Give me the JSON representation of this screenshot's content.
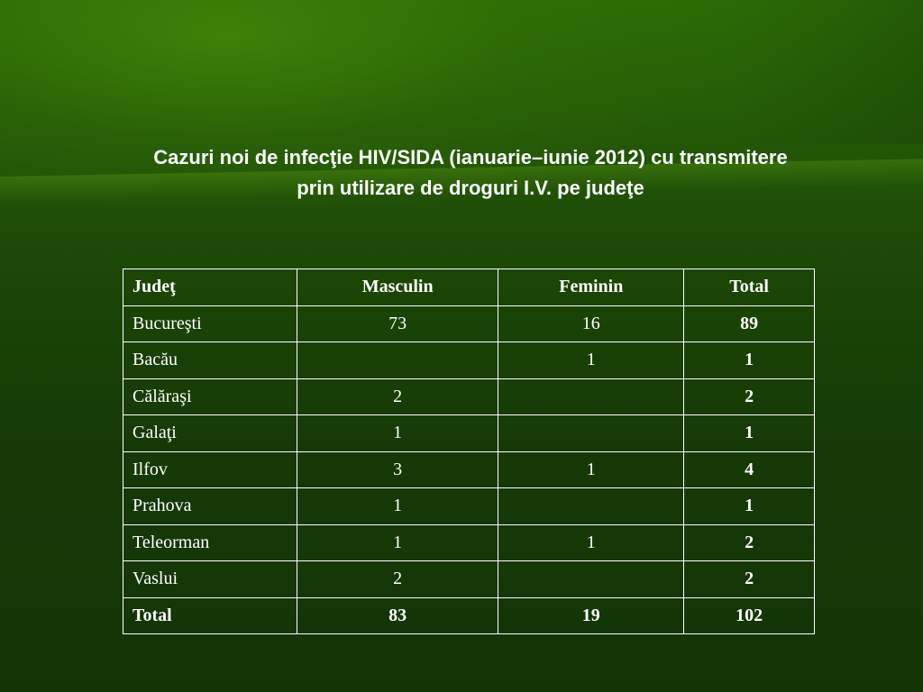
{
  "slide": {
    "title_line1": "Cazuri noi de infecţie HIV/SIDA (ianuarie–iunie 2012) cu transmitere",
    "title_line2": "prin utilizare de droguri I.V. pe judeţe"
  },
  "table": {
    "headers": [
      "Judeţ",
      "Masculin",
      "Feminin",
      "Total"
    ],
    "rows": [
      {
        "judet": "Bucureşti",
        "masculin": "73",
        "feminin": "16",
        "total": "89"
      },
      {
        "judet": "Bacău",
        "masculin": "",
        "feminin": "1",
        "total": "1"
      },
      {
        "judet": "Călăraşi",
        "masculin": "2",
        "feminin": "",
        "total": "2"
      },
      {
        "judet": "Galaţi",
        "masculin": "1",
        "feminin": "",
        "total": "1"
      },
      {
        "judet": "Ilfov",
        "masculin": "3",
        "feminin": "1",
        "total": "4"
      },
      {
        "judet": "Prahova",
        "masculin": "1",
        "feminin": "",
        "total": "1"
      },
      {
        "judet": "Teleorman",
        "masculin": "1",
        "feminin": "1",
        "total": "2"
      },
      {
        "judet": "Vaslui",
        "masculin": "2",
        "feminin": "",
        "total": "2"
      }
    ],
    "totals": {
      "label": "Total",
      "masculin": "83",
      "feminin": "19",
      "total": "102"
    }
  },
  "colors": {
    "background": "#1b4606",
    "text": "#ffffff",
    "grid": "#ffffff"
  }
}
